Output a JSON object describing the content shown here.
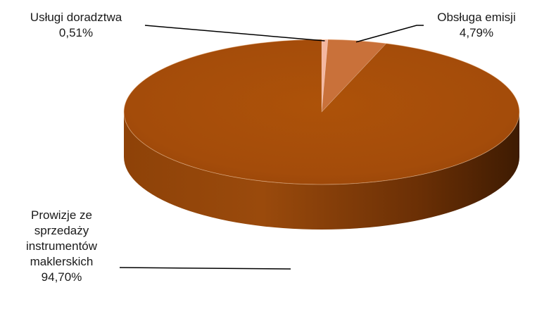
{
  "chart_data": {
    "type": "pie",
    "style": "3d",
    "slices": [
      {
        "label": "Usługi doradztwa",
        "value_text": "0,51%",
        "value": 0.51,
        "color": "#F4B7A0"
      },
      {
        "label": "Obsługa emisji",
        "value_text": "4,79%",
        "value": 4.79,
        "color": "#C9713A"
      },
      {
        "label_lines": [
          "Prowizje ze",
          "sprzedaży",
          "instrumentów",
          "maklerskich"
        ],
        "value_text": "94,70%",
        "value": 94.7,
        "color": "#A44C0A"
      }
    ],
    "legend": "none",
    "data_labels": "outside with leader lines"
  }
}
